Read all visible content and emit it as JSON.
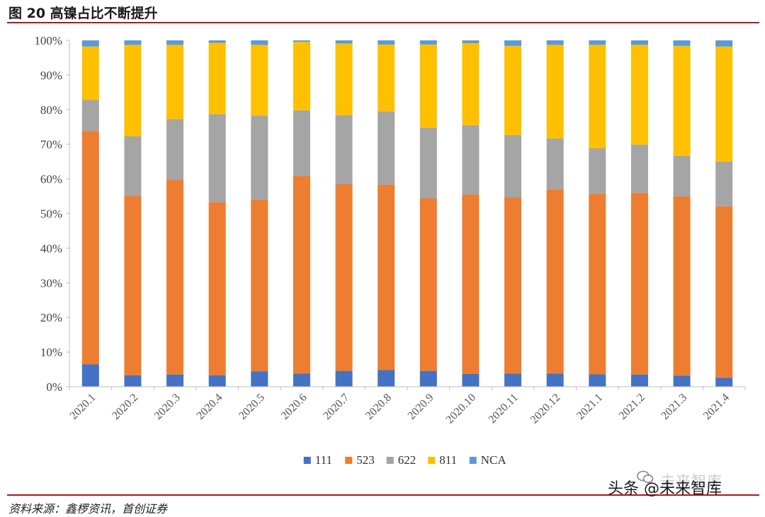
{
  "figure": {
    "title": "图 20 高镍占比不断提升",
    "source": "资料来源：鑫椤资讯，首创证券",
    "watermark": "头条 @未来智库",
    "watermark_faint": "未来智库"
  },
  "colors": {
    "111": "#4472c4",
    "523": "#ed7d31",
    "622": "#a5a5a5",
    "811": "#ffc000",
    "NCA": "#5b9bd5",
    "rule": "#b8141e"
  },
  "chart_data": {
    "type": "bar",
    "stacked": true,
    "percent": true,
    "categories": [
      "2020.1",
      "2020.2",
      "2020.3",
      "2020.4",
      "2020.5",
      "2020.6",
      "2020.7",
      "2020.8",
      "2020.9",
      "2020.10",
      "2020.11",
      "2020.12",
      "2021.1",
      "2021.2",
      "2021.3",
      "2021.4"
    ],
    "series": [
      {
        "name": "111",
        "values": [
          6.5,
          3.3,
          3.5,
          3.3,
          4.4,
          3.8,
          4.5,
          4.8,
          4.5,
          3.7,
          3.8,
          3.8,
          3.6,
          3.5,
          3.2,
          2.6
        ]
      },
      {
        "name": "523",
        "values": [
          67.3,
          51.9,
          56.3,
          50.0,
          49.6,
          57.1,
          54.0,
          53.5,
          49.9,
          51.8,
          50.8,
          53.2,
          52.1,
          52.4,
          51.7,
          49.5
        ]
      },
      {
        "name": "622",
        "values": [
          9.0,
          17.1,
          17.4,
          25.4,
          24.3,
          18.9,
          19.9,
          21.2,
          20.4,
          20.0,
          18.0,
          14.7,
          13.2,
          14.0,
          11.8,
          12.9
        ]
      },
      {
        "name": "811",
        "values": [
          15.4,
          26.4,
          21.5,
          20.6,
          20.4,
          19.8,
          20.7,
          19.3,
          24.0,
          23.7,
          25.8,
          27.0,
          29.8,
          28.8,
          31.7,
          33.2
        ]
      },
      {
        "name": "NCA",
        "values": [
          1.8,
          1.3,
          1.3,
          0.7,
          1.3,
          0.4,
          0.9,
          1.2,
          1.2,
          0.8,
          1.6,
          1.3,
          1.3,
          1.3,
          1.6,
          1.8
        ]
      }
    ],
    "ylim": [
      0,
      100
    ],
    "yticks": [
      "0%",
      "10%",
      "20%",
      "30%",
      "40%",
      "50%",
      "60%",
      "70%",
      "80%",
      "90%",
      "100%"
    ],
    "legend": "bottom",
    "grid": false
  }
}
